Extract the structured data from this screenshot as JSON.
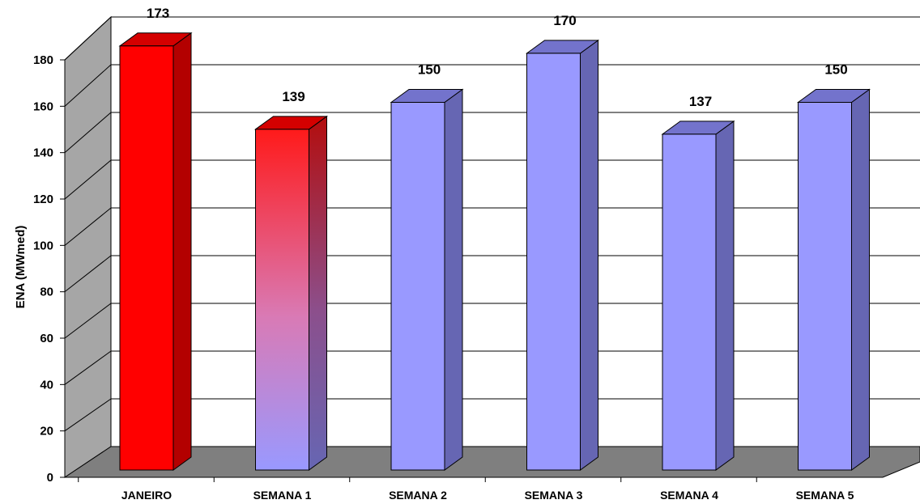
{
  "chart_data": {
    "type": "bar",
    "title": "",
    "xlabel": "",
    "ylabel": "ENA (MWmed)",
    "ylim": [
      0,
      180
    ],
    "yticks": [
      0,
      20,
      40,
      60,
      80,
      100,
      120,
      140,
      160,
      180
    ],
    "grid": true,
    "legend": "none",
    "three_d": true,
    "categories": [
      "JANEIRO",
      "SEMANA 1",
      "SEMANA 2",
      "SEMANA 3",
      "SEMANA 4",
      "SEMANA 5"
    ],
    "values": [
      173,
      139,
      150,
      170,
      137,
      150
    ],
    "data_labels": [
      "173",
      "139",
      "150",
      "170",
      "137",
      "150"
    ],
    "bar_styles": [
      "solid-red",
      "gradient-red-to-blue",
      "blue",
      "blue",
      "blue",
      "blue"
    ],
    "colors": {
      "red_front": "#ff0000",
      "red_side": "#b30000",
      "red_top": "#d40000",
      "blue_front": "#9999ff",
      "blue_side": "#6666b3",
      "blue_top": "#7373cc",
      "back_wall": "#ffffff",
      "side_wall": "#a6a6a6",
      "floor": "#7f7f7f",
      "grid": "#000000"
    }
  }
}
